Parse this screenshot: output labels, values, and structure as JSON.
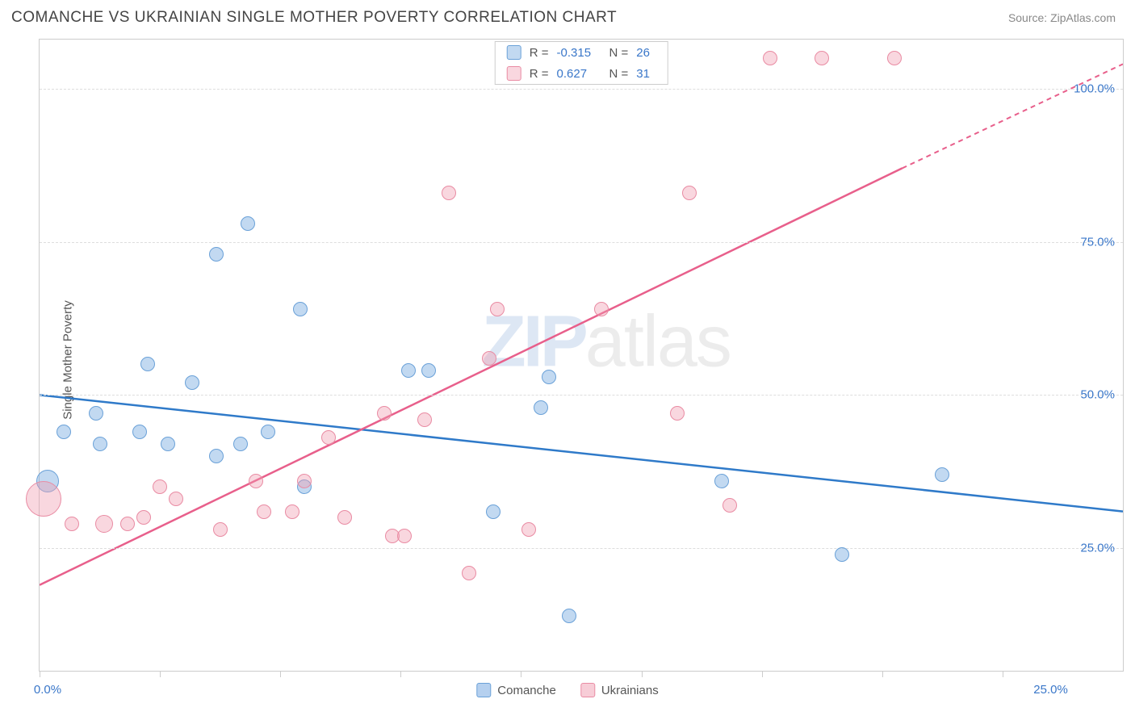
{
  "header": {
    "title": "COMANCHE VS UKRAINIAN SINGLE MOTHER POVERTY CORRELATION CHART",
    "source": "Source: ZipAtlas.com"
  },
  "chart": {
    "type": "scatter",
    "ylabel": "Single Mother Poverty",
    "xlim": [
      0,
      27
    ],
    "ylim": [
      5,
      108
    ],
    "x_ticks": [
      0,
      3,
      6,
      9,
      12,
      15,
      18,
      21,
      24
    ],
    "x_tick_labels": {
      "0": "0.0%",
      "25": "25.0%"
    },
    "y_ticks": [
      25,
      50,
      75,
      100
    ],
    "y_tick_labels": {
      "25": "25.0%",
      "50": "50.0%",
      "75": "75.0%",
      "100": "100.0%"
    },
    "axis_label_color": "#3a77c9",
    "grid_color": "#dddddd",
    "border_color": "#cccccc",
    "background_color": "#ffffff",
    "watermark": {
      "z": "ZIP",
      "rest": "atlas"
    },
    "series": [
      {
        "key": "comanche",
        "name": "Comanche",
        "fill_color": "rgba(120,170,225,0.45)",
        "stroke_color": "#6aa1d8",
        "trend_color": "#2f7ac9",
        "trend_solid": true,
        "trend": {
          "x1": 0,
          "y1": 50,
          "x2": 27,
          "y2": 31
        },
        "r_label": "R =",
        "r_value": "-0.315",
        "n_label": "N =",
        "n_value": "26",
        "points": [
          {
            "x": 0.2,
            "y": 36,
            "r": 14
          },
          {
            "x": 0.6,
            "y": 44,
            "r": 9
          },
          {
            "x": 1.4,
            "y": 47,
            "r": 9
          },
          {
            "x": 1.5,
            "y": 42,
            "r": 9
          },
          {
            "x": 2.5,
            "y": 44,
            "r": 9
          },
          {
            "x": 2.7,
            "y": 55,
            "r": 9
          },
          {
            "x": 3.2,
            "y": 42,
            "r": 9
          },
          {
            "x": 3.8,
            "y": 52,
            "r": 9
          },
          {
            "x": 4.4,
            "y": 40,
            "r": 9
          },
          {
            "x": 4.4,
            "y": 73,
            "r": 9
          },
          {
            "x": 5.0,
            "y": 42,
            "r": 9
          },
          {
            "x": 5.2,
            "y": 78,
            "r": 9
          },
          {
            "x": 5.7,
            "y": 44,
            "r": 9
          },
          {
            "x": 6.5,
            "y": 64,
            "r": 9
          },
          {
            "x": 6.6,
            "y": 35,
            "r": 9
          },
          {
            "x": 9.2,
            "y": 54,
            "r": 9
          },
          {
            "x": 9.7,
            "y": 54,
            "r": 9
          },
          {
            "x": 11.3,
            "y": 31,
            "r": 9
          },
          {
            "x": 12.5,
            "y": 48,
            "r": 9
          },
          {
            "x": 12.7,
            "y": 53,
            "r": 9
          },
          {
            "x": 13.2,
            "y": 14,
            "r": 9
          },
          {
            "x": 13.5,
            "y": 105,
            "r": 9
          },
          {
            "x": 14.5,
            "y": 105,
            "r": 9
          },
          {
            "x": 17.0,
            "y": 36,
            "r": 9
          },
          {
            "x": 20.0,
            "y": 24,
            "r": 9
          },
          {
            "x": 22.5,
            "y": 37,
            "r": 9
          }
        ]
      },
      {
        "key": "ukrainians",
        "name": "Ukrainians",
        "fill_color": "rgba(240,155,175,0.40)",
        "stroke_color": "#e98ba3",
        "trend_color": "#e85f8b",
        "trend_solid": true,
        "trend_dashed_extension": {
          "x1": 21.5,
          "y1": 87,
          "x2": 27,
          "y2": 104
        },
        "trend": {
          "x1": 0,
          "y1": 19,
          "x2": 21.5,
          "y2": 87
        },
        "r_label": "R =",
        "r_value": "0.627",
        "n_label": "N =",
        "n_value": "31",
        "points": [
          {
            "x": 0.1,
            "y": 33,
            "r": 22
          },
          {
            "x": 0.8,
            "y": 29,
            "r": 9
          },
          {
            "x": 1.6,
            "y": 29,
            "r": 11
          },
          {
            "x": 2.2,
            "y": 29,
            "r": 9
          },
          {
            "x": 2.6,
            "y": 30,
            "r": 9
          },
          {
            "x": 3.0,
            "y": 35,
            "r": 9
          },
          {
            "x": 3.4,
            "y": 33,
            "r": 9
          },
          {
            "x": 4.5,
            "y": 28,
            "r": 9
          },
          {
            "x": 5.4,
            "y": 36,
            "r": 9
          },
          {
            "x": 5.6,
            "y": 31,
            "r": 9
          },
          {
            "x": 6.3,
            "y": 31,
            "r": 9
          },
          {
            "x": 6.6,
            "y": 36,
            "r": 9
          },
          {
            "x": 7.2,
            "y": 43,
            "r": 9
          },
          {
            "x": 7.6,
            "y": 30,
            "r": 9
          },
          {
            "x": 8.6,
            "y": 47,
            "r": 9
          },
          {
            "x": 8.8,
            "y": 27,
            "r": 9
          },
          {
            "x": 9.1,
            "y": 27,
            "r": 9
          },
          {
            "x": 9.6,
            "y": 46,
            "r": 9
          },
          {
            "x": 10.2,
            "y": 83,
            "r": 9
          },
          {
            "x": 10.7,
            "y": 21,
            "r": 9
          },
          {
            "x": 11.2,
            "y": 56,
            "r": 9
          },
          {
            "x": 11.4,
            "y": 64,
            "r": 9
          },
          {
            "x": 12.2,
            "y": 28,
            "r": 9
          },
          {
            "x": 14.0,
            "y": 64,
            "r": 9
          },
          {
            "x": 15.9,
            "y": 47,
            "r": 9
          },
          {
            "x": 16.2,
            "y": 83,
            "r": 9
          },
          {
            "x": 17.2,
            "y": 32,
            "r": 9
          },
          {
            "x": 18.2,
            "y": 105,
            "r": 9
          },
          {
            "x": 19.5,
            "y": 105,
            "r": 9
          },
          {
            "x": 14.2,
            "y": 105,
            "r": 9
          },
          {
            "x": 21.3,
            "y": 105,
            "r": 9
          }
        ]
      }
    ],
    "legend_bottom": [
      {
        "swatch_fill": "rgba(120,170,225,0.55)",
        "swatch_stroke": "#6aa1d8",
        "label": "Comanche"
      },
      {
        "swatch_fill": "rgba(240,155,175,0.5)",
        "swatch_stroke": "#e98ba3",
        "label": "Ukrainians"
      }
    ]
  }
}
